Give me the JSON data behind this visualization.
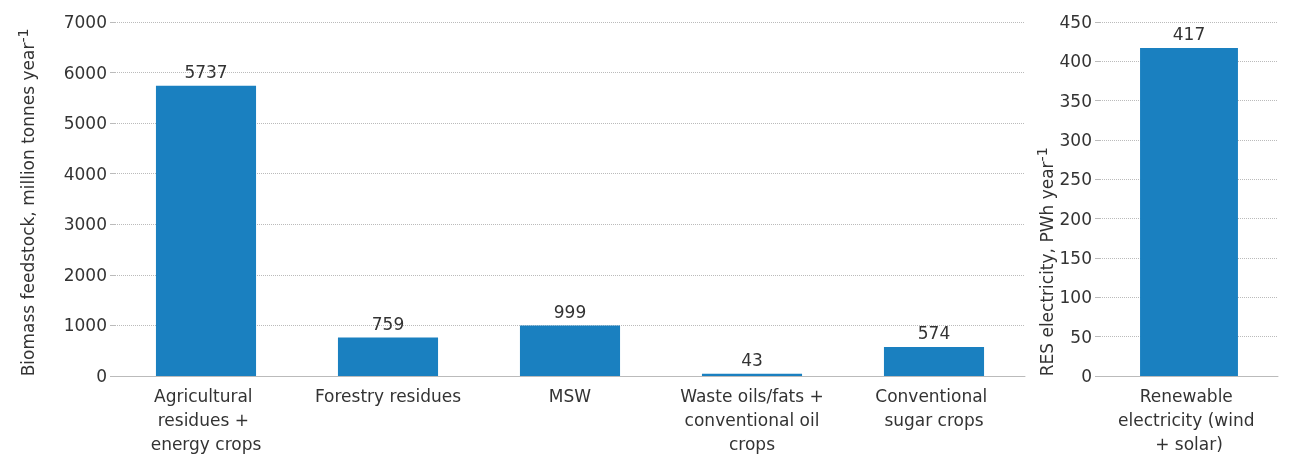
{
  "chart_data": [
    {
      "type": "bar",
      "ylabel": "Biomass feedstock, million tonnes year$^{-1}$",
      "categories": [
        "Agricultural residues + energy crops",
        "Forestry residues",
        "MSW",
        "Waste oils/fats + conventional oil crops",
        "Conventional sugar crops"
      ],
      "values": [
        5737,
        759,
        999,
        43,
        574
      ],
      "color": "#1a80c0",
      "ylim": [
        0,
        7000
      ],
      "yticks": [
        0,
        1000,
        2000,
        3000,
        4000,
        5000,
        6000,
        7000
      ],
      "grid": "y",
      "data_labels": true
    },
    {
      "type": "bar",
      "ylabel": "RES electricity, PWh year$^{-1}$",
      "categories": [
        "Renewable electricity (wind + solar)"
      ],
      "values": [
        417
      ],
      "color": "#1a80c0",
      "ylim": [
        0,
        450
      ],
      "yticks": [
        0,
        50,
        100,
        150,
        200,
        250,
        300,
        350,
        400,
        450
      ],
      "grid": "y",
      "data_labels": true
    }
  ]
}
